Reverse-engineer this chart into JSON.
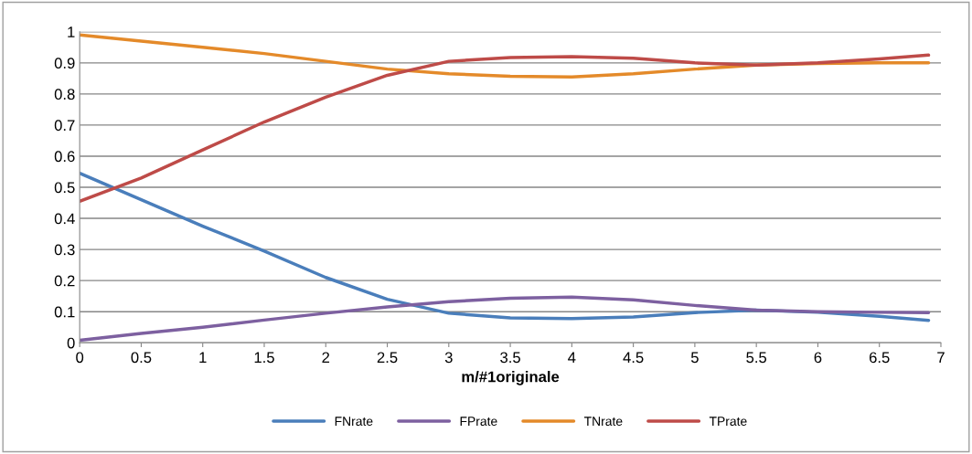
{
  "chart_data": {
    "type": "line",
    "xlabel": "m/#1originale",
    "x": [
      0,
      0.5,
      1,
      1.5,
      2,
      2.5,
      3,
      3.5,
      4,
      4.5,
      5,
      5.5,
      6,
      6.5,
      6.9
    ],
    "series": [
      {
        "name": "FNrate",
        "color": "#4a7ebb",
        "values": [
          0.545,
          0.46,
          0.375,
          0.295,
          0.21,
          0.14,
          0.095,
          0.08,
          0.078,
          0.083,
          0.097,
          0.105,
          0.098,
          0.085,
          0.072
        ]
      },
      {
        "name": "FPrate",
        "color": "#7d60a0",
        "values": [
          0.008,
          0.03,
          0.05,
          0.073,
          0.095,
          0.115,
          0.132,
          0.143,
          0.147,
          0.138,
          0.12,
          0.105,
          0.1,
          0.098,
          0.097
        ]
      },
      {
        "name": "TNrate",
        "color": "#e48a2a",
        "values": [
          0.99,
          0.97,
          0.95,
          0.93,
          0.905,
          0.88,
          0.865,
          0.857,
          0.855,
          0.865,
          0.88,
          0.893,
          0.898,
          0.9,
          0.9
        ]
      },
      {
        "name": "TPrate",
        "color": "#be4b48",
        "values": [
          0.455,
          0.53,
          0.62,
          0.71,
          0.79,
          0.86,
          0.905,
          0.917,
          0.92,
          0.915,
          0.9,
          0.893,
          0.9,
          0.913,
          0.925
        ]
      }
    ],
    "xlim": [
      0,
      7
    ],
    "xticks": [
      0,
      0.5,
      1,
      1.5,
      2,
      2.5,
      3,
      3.5,
      4,
      4.5,
      5,
      5.5,
      6,
      6.5,
      7
    ],
    "ylim": [
      0,
      1
    ],
    "yticks": [
      0,
      0.1,
      0.2,
      0.3,
      0.4,
      0.5,
      0.6,
      0.7,
      0.8,
      0.9,
      1
    ],
    "grid": "y",
    "legend": "bottom",
    "marker": "none",
    "line_style": "solid"
  }
}
